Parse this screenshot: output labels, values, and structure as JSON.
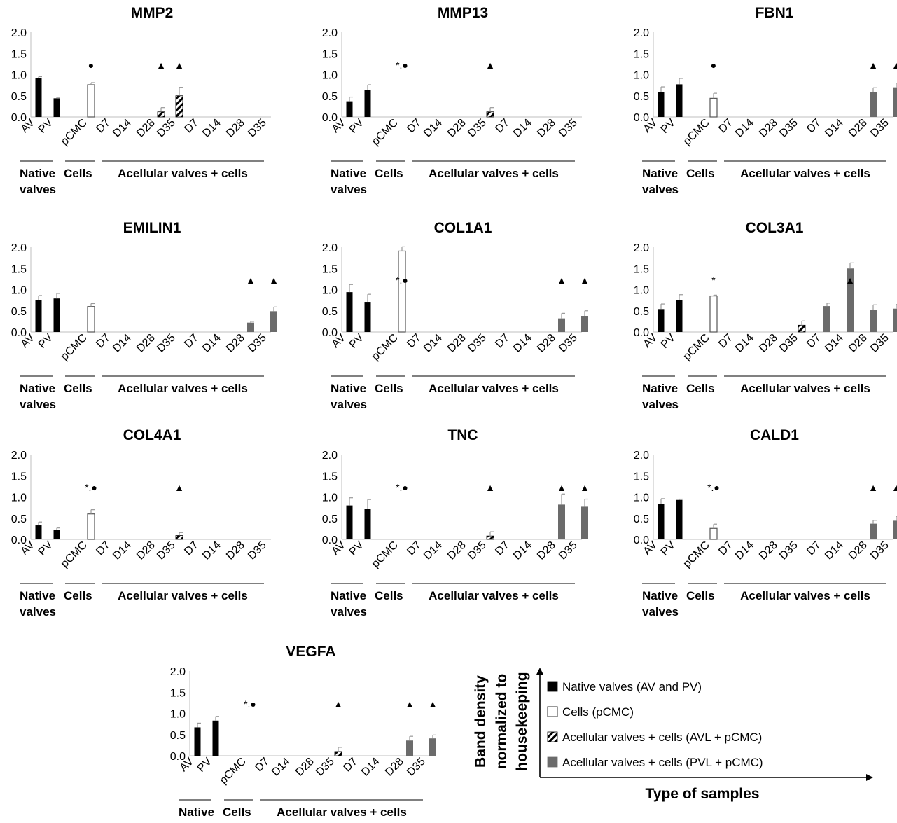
{
  "chart_data": {
    "type": "bar",
    "x_labels": [
      "AV",
      "PV",
      "pCMC",
      "D7",
      "D14",
      "D28",
      "D35",
      "D7",
      "D14",
      "D28",
      "D35"
    ],
    "y_ticks": [
      "2.0",
      "1.5",
      "1.0",
      "0.5",
      "0.0"
    ],
    "ylim": [
      0,
      2
    ],
    "group_labels": [
      "Native",
      "valves",
      "Cells",
      "Acellular valves + cells"
    ],
    "panels": [
      {
        "title": "MMP2",
        "values": [
          0.92,
          0.44,
          0.76,
          0,
          0,
          0.12,
          0.5,
          0,
          0,
          0,
          0
        ],
        "errors": [
          0.03,
          0.02,
          0.05,
          0,
          0,
          0.1,
          0.2,
          0,
          0,
          0,
          0
        ],
        "markers": [
          {
            "at": 2,
            "text": "●"
          },
          {
            "at": 5,
            "text": "▲"
          },
          {
            "at": 6,
            "text": "▲"
          }
        ]
      },
      {
        "title": "MMP13",
        "values": [
          0.37,
          0.64,
          0,
          0,
          0,
          0,
          0.12,
          0,
          0,
          0,
          0
        ],
        "errors": [
          0.1,
          0.12,
          0,
          0,
          0,
          0,
          0.1,
          0,
          0,
          0,
          0
        ],
        "markers": [
          {
            "at": 2,
            "text": "*.●"
          },
          {
            "at": 6,
            "text": "▲"
          }
        ]
      },
      {
        "title": "FBN1",
        "values": [
          0.59,
          0.77,
          0.44,
          0,
          0,
          0,
          0,
          0,
          0,
          0.59,
          0.7
        ],
        "errors": [
          0.12,
          0.14,
          0.12,
          0,
          0,
          0,
          0,
          0,
          0,
          0.1,
          0.1
        ],
        "markers": [
          {
            "at": 2,
            "text": "●"
          },
          {
            "at": 9,
            "text": "▲"
          },
          {
            "at": 10,
            "text": "▲"
          }
        ]
      },
      {
        "title": "EMILIN1",
        "values": [
          0.76,
          0.79,
          0.6,
          0,
          0,
          0,
          0,
          0,
          0,
          0.22,
          0.49
        ],
        "errors": [
          0.1,
          0.12,
          0.07,
          0,
          0,
          0,
          0,
          0,
          0,
          0.03,
          0.1
        ],
        "markers": [
          {
            "at": 9,
            "text": "▲"
          },
          {
            "at": 10,
            "text": "▲"
          }
        ]
      },
      {
        "title": "COL1A1",
        "values": [
          0.94,
          0.71,
          1.91,
          0,
          0,
          0,
          0,
          0,
          0,
          0.32,
          0.38
        ],
        "errors": [
          0.18,
          0.18,
          0.1,
          0,
          0,
          0,
          0,
          0,
          0,
          0.12,
          0.12
        ],
        "markers": [
          {
            "at": 2,
            "text": "*.●"
          },
          {
            "at": 9,
            "text": "▲"
          },
          {
            "at": 10,
            "text": "▲"
          }
        ]
      },
      {
        "title": "COL3A1",
        "values": [
          0.54,
          0.76,
          0.85,
          0,
          0,
          0,
          0.16,
          0.61,
          1.5,
          0.52,
          0.55
        ],
        "errors": [
          0.12,
          0.12,
          0.02,
          0,
          0,
          0,
          0.1,
          0.07,
          0.13,
          0.12,
          0.1
        ],
        "markers": [
          {
            "at": 2,
            "text": "*"
          },
          {
            "at": 8,
            "text": "▲"
          }
        ]
      },
      {
        "title": "COL4A1",
        "values": [
          0.33,
          0.22,
          0.6,
          0,
          0,
          0,
          0.09,
          0,
          0,
          0,
          0
        ],
        "errors": [
          0.08,
          0.05,
          0.1,
          0,
          0,
          0,
          0.07,
          0,
          0,
          0,
          0
        ],
        "markers": [
          {
            "at": 2,
            "text": "*.●"
          },
          {
            "at": 6,
            "text": "▲"
          }
        ]
      },
      {
        "title": "TNC",
        "values": [
          0.8,
          0.72,
          0,
          0,
          0,
          0,
          0.08,
          0,
          0,
          0.82,
          0.77
        ],
        "errors": [
          0.18,
          0.22,
          0,
          0,
          0,
          0,
          0.1,
          0,
          0,
          0.25,
          0.18
        ],
        "markers": [
          {
            "at": 2,
            "text": "*.●"
          },
          {
            "at": 6,
            "text": "▲"
          },
          {
            "at": 9,
            "text": "▲"
          },
          {
            "at": 10,
            "text": "▲"
          }
        ]
      },
      {
        "title": "CALD1",
        "values": [
          0.84,
          0.93,
          0.26,
          0,
          0,
          0,
          0,
          0,
          0,
          0.37,
          0.44
        ],
        "errors": [
          0.12,
          0.02,
          0.1,
          0,
          0,
          0,
          0,
          0,
          0,
          0.08,
          0.1
        ],
        "markers": [
          {
            "at": 2,
            "text": "*.●"
          },
          {
            "at": 9,
            "text": "▲"
          },
          {
            "at": 10,
            "text": "▲"
          }
        ]
      },
      {
        "title": "VEGFA",
        "values": [
          0.67,
          0.83,
          0,
          0,
          0,
          0,
          0.1,
          0,
          0,
          0.36,
          0.41
        ],
        "errors": [
          0.1,
          0.1,
          0,
          0,
          0,
          0,
          0.1,
          0,
          0,
          0.1,
          0.08
        ],
        "markers": [
          {
            "at": 2,
            "text": "*.●"
          },
          {
            "at": 6,
            "text": "▲"
          },
          {
            "at": 9,
            "text": "▲"
          },
          {
            "at": 10,
            "text": "▲"
          }
        ]
      }
    ],
    "legend": [
      {
        "label": "Native valves (AV and PV)",
        "style": "solid-black"
      },
      {
        "label": "Cells (pCMC)",
        "style": "white"
      },
      {
        "label": "Acellular valves + cells (AVL + pCMC)",
        "style": "hatched"
      },
      {
        "label": "Acellular valves + cells (PVL + pCMC)",
        "style": "solid-gray"
      }
    ],
    "ylabel": [
      "Band density",
      "normalized to",
      "housekeeping"
    ],
    "xlabel": "Type of samples"
  },
  "colors": {
    "native": "#000000",
    "cells_fill": "#ffffff",
    "cells_stroke": "#555555",
    "pvl": "#6b6b6b",
    "error_bar": "#999999",
    "axis": "#bfbfbf"
  }
}
